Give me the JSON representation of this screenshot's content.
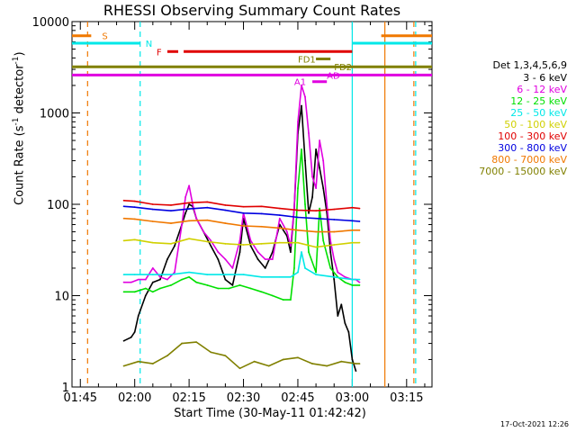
{
  "header": {
    "title": "RHESSI Observing Summary Count Rates"
  },
  "footer": {
    "stamp": "17-Oct-2021 12:26"
  },
  "legend": {
    "title": "Det 1,3,4,5,6,9",
    "items": [
      {
        "label": "3 - 6 keV",
        "color": "#000000"
      },
      {
        "label": "6 - 12 keV",
        "color": "#e000e0"
      },
      {
        "label": "12 - 25 keV",
        "color": "#00e000"
      },
      {
        "label": "25 - 50 keV",
        "color": "#00e8e8"
      },
      {
        "label": "50 - 100 keV",
        "color": "#d0d000"
      },
      {
        "label": "100 - 300 keV",
        "color": "#e00000"
      },
      {
        "label": "300 - 800 keV",
        "color": "#0000e0"
      },
      {
        "label": "800 - 7000 keV",
        "color": "#f07800"
      },
      {
        "label": "7000 - 15000 keV",
        "color": "#808000"
      }
    ]
  },
  "chart_data": {
    "type": "line",
    "title": "RHESSI Observing Summary Count Rates",
    "xlabel": "Start Time (30-May-11 01:42:42)",
    "ylabel": "Count Rate (s⁻¹ detector⁻¹)",
    "x_unit": "minutes of day",
    "xlim": [
      102.7,
      202
    ],
    "ylim": [
      1,
      10000
    ],
    "yscale": "log",
    "x_ticks": [
      {
        "value": 105,
        "label": "01:45"
      },
      {
        "value": 120,
        "label": "02:00"
      },
      {
        "value": 135,
        "label": "02:15"
      },
      {
        "value": 150,
        "label": "02:30"
      },
      {
        "value": 165,
        "label": "02:45"
      },
      {
        "value": 180,
        "label": "03:00"
      },
      {
        "value": 195,
        "label": "03:15"
      }
    ],
    "y_ticks": [
      {
        "value": 1,
        "label": "1"
      },
      {
        "value": 10,
        "label": "10"
      },
      {
        "value": 100,
        "label": "100"
      },
      {
        "value": 1000,
        "label": "1000"
      },
      {
        "value": 10000,
        "label": "10000"
      }
    ],
    "series": [
      {
        "name": "3 - 6 keV",
        "color": "#000000",
        "x": [
          117,
          119,
          120,
          121,
          123,
          125,
          127,
          129,
          131,
          133,
          134,
          135,
          136,
          137,
          139,
          141,
          143,
          145,
          147,
          149,
          150,
          152,
          154,
          156,
          158,
          160,
          162,
          163,
          164,
          165,
          166,
          167,
          168,
          169,
          170,
          171,
          172,
          173,
          174,
          175,
          176,
          177,
          178,
          179,
          180,
          181
        ],
        "y": [
          3.2,
          3.5,
          4,
          6,
          10,
          14,
          15,
          25,
          35,
          60,
          80,
          100,
          95,
          70,
          50,
          35,
          25,
          15,
          13,
          30,
          70,
          35,
          25,
          20,
          30,
          60,
          45,
          30,
          90,
          600,
          1200,
          300,
          80,
          120,
          400,
          250,
          150,
          80,
          30,
          15,
          6,
          8,
          5,
          4,
          2,
          1.5
        ]
      },
      {
        "name": "6 - 12 keV",
        "color": "#e000e0",
        "x": [
          117,
          119,
          121,
          123,
          125,
          127,
          129,
          131,
          133,
          134,
          135,
          136,
          137,
          139,
          141,
          143,
          145,
          147,
          149,
          150,
          152,
          154,
          156,
          158,
          160,
          162,
          163,
          164,
          165,
          166,
          167,
          168,
          169,
          170,
          171,
          172,
          173,
          174,
          175,
          176,
          178,
          180,
          181,
          182
        ],
        "y": [
          14,
          14,
          15,
          15,
          20,
          16,
          15,
          18,
          60,
          120,
          160,
          100,
          70,
          50,
          40,
          30,
          25,
          20,
          40,
          80,
          40,
          30,
          25,
          25,
          70,
          50,
          35,
          90,
          800,
          2000,
          1500,
          600,
          200,
          150,
          500,
          300,
          100,
          40,
          25,
          18,
          16,
          15,
          15,
          14
        ]
      },
      {
        "name": "12 - 25 keV",
        "color": "#00e000",
        "x": [
          117,
          120,
          123,
          125,
          127,
          130,
          133,
          135,
          137,
          140,
          143,
          146,
          149,
          152,
          155,
          158,
          161,
          163,
          164,
          165,
          166,
          167,
          168,
          170,
          171,
          172,
          174,
          176,
          178,
          180,
          182
        ],
        "y": [
          11,
          11,
          12,
          11,
          12,
          13,
          15,
          16,
          14,
          13,
          12,
          12,
          13,
          12,
          11,
          10,
          9,
          9,
          20,
          150,
          400,
          100,
          30,
          18,
          90,
          40,
          20,
          16,
          14,
          13,
          13
        ]
      },
      {
        "name": "25 - 50 keV",
        "color": "#00e8e8",
        "x": [
          117,
          120,
          125,
          130,
          135,
          140,
          145,
          150,
          155,
          160,
          163,
          165,
          166,
          167,
          170,
          175,
          180,
          182
        ],
        "y": [
          17,
          17,
          17,
          17,
          18,
          17,
          17,
          17,
          16,
          16,
          16,
          18,
          30,
          20,
          17,
          16,
          15,
          15
        ]
      },
      {
        "name": "50 - 100 keV",
        "color": "#d0d000",
        "x": [
          117,
          120,
          125,
          130,
          135,
          140,
          145,
          150,
          155,
          160,
          165,
          170,
          175,
          180,
          182
        ],
        "y": [
          40,
          41,
          38,
          37,
          42,
          39,
          37,
          36,
          37,
          38,
          38,
          34,
          36,
          38,
          38
        ]
      },
      {
        "name": "100 - 300 keV",
        "color": "#e00000",
        "x": [
          117,
          120,
          125,
          130,
          135,
          140,
          145,
          150,
          155,
          160,
          165,
          170,
          175,
          180,
          182
        ],
        "y": [
          110,
          108,
          100,
          98,
          104,
          106,
          98,
          94,
          95,
          90,
          86,
          85,
          88,
          92,
          90
        ]
      },
      {
        "name": "300 - 800 keV",
        "color": "#0000e0",
        "x": [
          117,
          120,
          125,
          130,
          135,
          140,
          145,
          150,
          155,
          160,
          165,
          170,
          175,
          180,
          182
        ],
        "y": [
          95,
          93,
          88,
          85,
          89,
          92,
          86,
          80,
          79,
          76,
          72,
          70,
          68,
          66,
          65
        ]
      },
      {
        "name": "800 - 7000 keV",
        "color": "#f07800",
        "x": [
          117,
          120,
          125,
          130,
          135,
          140,
          145,
          150,
          155,
          160,
          165,
          170,
          175,
          180,
          182
        ],
        "y": [
          70,
          69,
          65,
          62,
          66,
          67,
          62,
          58,
          57,
          55,
          52,
          50,
          50,
          52,
          52
        ]
      },
      {
        "name": "7000 - 15000 keV",
        "color": "#808000",
        "x": [
          117,
          121,
          125,
          129,
          133,
          137,
          141,
          145,
          149,
          153,
          157,
          161,
          165,
          169,
          173,
          177,
          181,
          182
        ],
        "y": [
          1.7,
          1.9,
          1.8,
          2.2,
          3,
          3.1,
          2.4,
          2.2,
          1.6,
          1.9,
          1.7,
          2,
          2.1,
          1.8,
          1.7,
          1.9,
          1.8,
          1.8
        ]
      }
    ],
    "flag_bars": [
      {
        "label": "S",
        "color": "#f07800",
        "y": 7000,
        "x_start": 102.7,
        "x_end": 108,
        "label_x": 111
      },
      {
        "label": "S",
        "color": "#f07800",
        "y": 7000,
        "x_start": 188,
        "x_end": 202,
        "label_x": null
      },
      {
        "label": "N",
        "color": "#00e8e8",
        "y": 5800,
        "x_start": 102.7,
        "x_end": 121.5,
        "label_x": 123
      },
      {
        "label": "N",
        "color": "#00e8e8",
        "y": 5800,
        "x_start": 180,
        "x_end": 202,
        "label_x": null
      },
      {
        "label": "F",
        "color": "#e00000",
        "y": 4700,
        "x_start": 129,
        "x_end": 132,
        "label_x": 126
      },
      {
        "label": "F",
        "color": "#e00000",
        "y": 4700,
        "x_start": 133.5,
        "x_end": 180,
        "label_x": null
      },
      {
        "label": "FD1",
        "color": "#808000",
        "y": 3900,
        "x_start": 170,
        "x_end": 174,
        "label_x": 165
      },
      {
        "label": "FD2",
        "color": "#808000",
        "y": 3200,
        "x_start": 102.7,
        "x_end": 202,
        "label_x": 175
      },
      {
        "label": "AD",
        "color": "#e000e0",
        "y": 2600,
        "x_start": 102.7,
        "x_end": 202,
        "label_x": 173
      },
      {
        "label": "A1",
        "color": "#e000e0",
        "y": 2200,
        "x_start": 169,
        "x_end": 173,
        "label_x": 164
      }
    ],
    "vertical_markers": [
      {
        "x": 107,
        "color": "#f07800",
        "style": "dashed"
      },
      {
        "x": 121.5,
        "color": "#00e8e8",
        "style": "dashed"
      },
      {
        "x": 180,
        "color": "#00e8e8",
        "style": "solid"
      },
      {
        "x": 189,
        "color": "#f07800",
        "style": "solid"
      },
      {
        "x": 197,
        "color": "#f07800",
        "style": "dashed"
      },
      {
        "x": 197.5,
        "color": "#00e8e8",
        "style": "dashed"
      }
    ],
    "grid": false,
    "legend_position": "right"
  }
}
